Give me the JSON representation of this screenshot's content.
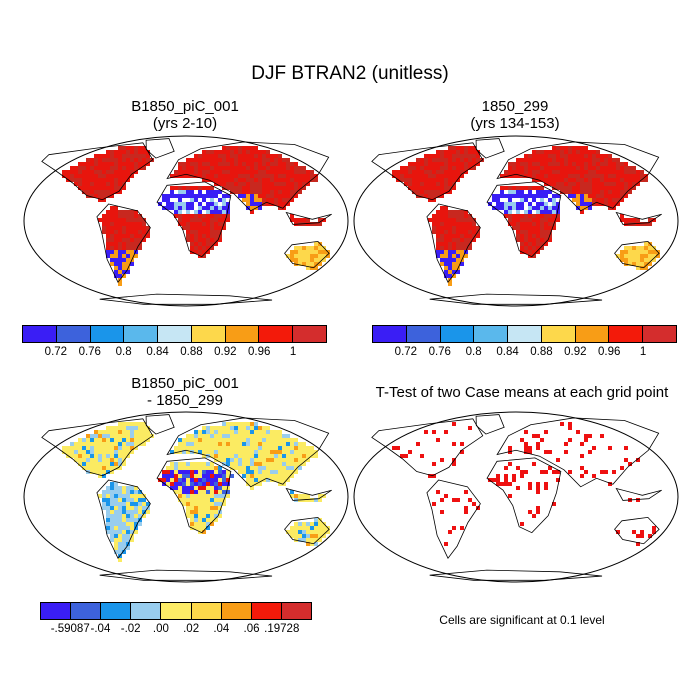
{
  "figure": {
    "title": "DJF BTRAN2 (unitless)"
  },
  "panels": {
    "top_left": {
      "line1": "B1850_piC_001",
      "line2": "(yrs 2-10)"
    },
    "top_right": {
      "line1": "1850_299",
      "line2": "(yrs 134-153)"
    },
    "bottom_left": {
      "line1": "B1850_piC_001",
      "line2": "- 1850_299"
    },
    "bottom_right": {
      "line1": "T-Test of two Case means at each grid point",
      "note": "Cells are significant at 0.1 level"
    }
  },
  "colorbars": {
    "absolute": {
      "colors": [
        "#3a1ef5",
        "#3d62dc",
        "#1a95ea",
        "#5ab8ec",
        "#c6e6f4",
        "#fdd84b",
        "#f89d16",
        "#f31a0a",
        "#d42d2d"
      ],
      "labels": [
        "0.72",
        "0.76",
        "0.8",
        "0.84",
        "0.88",
        "0.92",
        "0.96",
        "1"
      ]
    },
    "difference": {
      "colors": [
        "#3a1ef5",
        "#3d62dc",
        "#1a95ea",
        "#99cdee",
        "#fdec66",
        "#fdd84b",
        "#f89d16",
        "#f31a0a",
        "#d42d2d"
      ],
      "labels": [
        "-.59087",
        "-.04",
        "-.02",
        ".00",
        ".02",
        ".04",
        ".06",
        ".19728"
      ]
    }
  },
  "map_colors": {
    "high": "#e8150d",
    "very_high": "#c8281f",
    "mid": "#f89d16",
    "low": "#3a1ef5",
    "light_blue": "#99cdee",
    "diff_base": "#fbeb62",
    "sig": "#ee1111"
  }
}
